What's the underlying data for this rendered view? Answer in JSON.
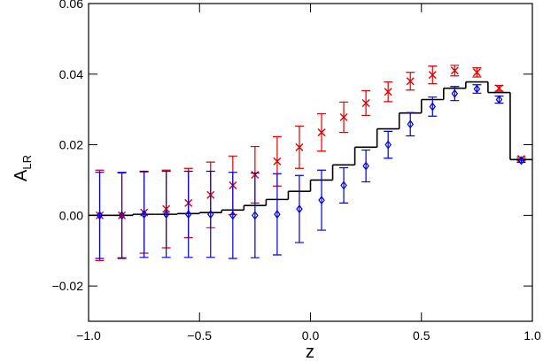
{
  "chart_data": {
    "type": "scatter",
    "x_label": "z",
    "y_label": "A",
    "y_label_sub": "LR",
    "xlim": [
      -1,
      1
    ],
    "xticks": [
      {
        "value": -1,
        "label": "−1.0"
      },
      {
        "value": -0.5,
        "label": "−0.5"
      },
      {
        "value": 0,
        "label": "0.0"
      },
      {
        "value": 0.5,
        "label": "0.5"
      },
      {
        "value": 1,
        "label": "1.0"
      }
    ],
    "ylim": [
      -0.03,
      0.06
    ],
    "yticks": [
      {
        "value": -0.02,
        "label": "−0.02"
      },
      {
        "value": 0,
        "label": "0.00"
      },
      {
        "value": 0.02,
        "label": "0.02"
      },
      {
        "value": 0.04,
        "label": "0.04"
      },
      {
        "value": 0.06,
        "label": "0.06"
      }
    ],
    "x": [
      -0.95,
      -0.85,
      -0.75,
      -0.65,
      -0.55,
      -0.45,
      -0.35,
      -0.25,
      -0.15,
      -0.05,
      0.05,
      0.15,
      0.25,
      0.35,
      0.45,
      0.55,
      0.65,
      0.75,
      0.85,
      0.95
    ],
    "series": [
      {
        "marker": "x",
        "color": "#e00000",
        "values": [
          0,
          0,
          0.0008,
          0.0018,
          0.0035,
          0.0058,
          0.0085,
          0.0115,
          0.0153,
          0.0193,
          0.0235,
          0.0278,
          0.0318,
          0.035,
          0.038,
          0.0398,
          0.041,
          0.0405,
          0.036,
          0.016
        ],
        "errors": [
          0.0128,
          0.012,
          0.0115,
          0.011,
          0.0098,
          0.0093,
          0.0083,
          0.008,
          0.007,
          0.006,
          0.0053,
          0.0043,
          0.0035,
          0.0028,
          0.0025,
          0.0025,
          0.0015,
          0.0013,
          0.0008,
          0.0005
        ]
      },
      {
        "marker": "diamond",
        "color": "#0000e0",
        "values": [
          0,
          0,
          0.0003,
          0.0003,
          0.0003,
          0.0003,
          0,
          0,
          0.0003,
          0.0018,
          0.0043,
          0.0085,
          0.014,
          0.02,
          0.0258,
          0.0308,
          0.0345,
          0.0358,
          0.0328,
          0.0155
        ],
        "errors": [
          0.0122,
          0.0122,
          0.0122,
          0.0122,
          0.0122,
          0.0122,
          0.0122,
          0.012,
          0.0115,
          0.0095,
          0.0085,
          0.005,
          0.0045,
          0.0038,
          0.0033,
          0.0027,
          0.002,
          0.0012,
          0.001,
          0.0005
        ]
      }
    ],
    "step": {
      "color": "#000000",
      "bins": [
        -1,
        -0.9,
        -0.8,
        -0.7,
        -0.6,
        -0.5,
        -0.4,
        -0.3,
        -0.2,
        -0.1,
        0,
        0.1,
        0.2,
        0.3,
        0.4,
        0.5,
        0.6,
        0.7,
        0.8,
        0.9,
        1
      ],
      "values": [
        0,
        0,
        0.0003,
        0.0003,
        0.0005,
        0.0008,
        0.0015,
        0.0028,
        0.0045,
        0.0068,
        0.01,
        0.0143,
        0.0193,
        0.0245,
        0.029,
        0.0328,
        0.036,
        0.0378,
        0.0348,
        0.0158
      ]
    }
  }
}
